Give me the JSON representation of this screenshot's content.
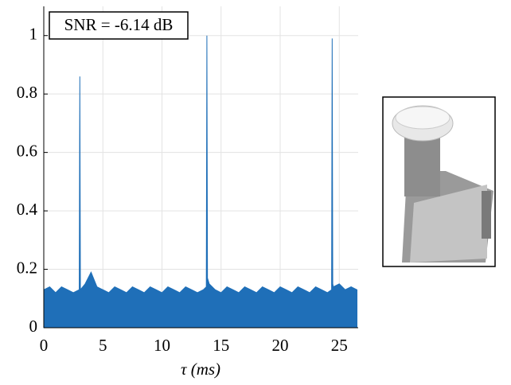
{
  "chart_data": {
    "type": "area",
    "annotation": "SNR = -6.14 dB",
    "x_label": "τ (ms)",
    "xlim": [
      0,
      26.6
    ],
    "xticks": [
      0,
      5,
      10,
      15,
      20,
      25
    ],
    "ylim": [
      0,
      1.1
    ],
    "yticks": [
      0,
      0.2,
      0.4,
      0.6,
      0.8,
      1
    ],
    "grid": true,
    "color": "#1f6fb8",
    "x": [
      0,
      0.5,
      1,
      1.5,
      2,
      2.5,
      3,
      3.05,
      3.1,
      3.5,
      4,
      4.5,
      5,
      5.5,
      6,
      6.5,
      7,
      7.5,
      8,
      8.5,
      9,
      9.5,
      10,
      10.5,
      11,
      11.5,
      12,
      12.5,
      13,
      13.5,
      13.75,
      13.8,
      13.85,
      14,
      14.5,
      15,
      15.5,
      16,
      16.5,
      17,
      17.5,
      18,
      18.5,
      19,
      19.5,
      20,
      20.5,
      21,
      21.5,
      22,
      22.5,
      23,
      23.5,
      24,
      24.35,
      24.4,
      24.45,
      24.5,
      25,
      25.5,
      26,
      26.5
    ],
    "values": [
      0.13,
      0.14,
      0.12,
      0.14,
      0.13,
      0.12,
      0.13,
      0.86,
      0.13,
      0.15,
      0.19,
      0.14,
      0.13,
      0.12,
      0.14,
      0.13,
      0.12,
      0.14,
      0.13,
      0.12,
      0.14,
      0.13,
      0.12,
      0.14,
      0.13,
      0.12,
      0.14,
      0.13,
      0.12,
      0.13,
      0.14,
      1.0,
      0.17,
      0.15,
      0.13,
      0.12,
      0.14,
      0.13,
      0.12,
      0.14,
      0.13,
      0.12,
      0.14,
      0.13,
      0.12,
      0.14,
      0.13,
      0.12,
      0.14,
      0.13,
      0.12,
      0.14,
      0.13,
      0.12,
      0.13,
      0.99,
      0.15,
      0.14,
      0.15,
      0.13,
      0.14,
      0.13
    ]
  }
}
